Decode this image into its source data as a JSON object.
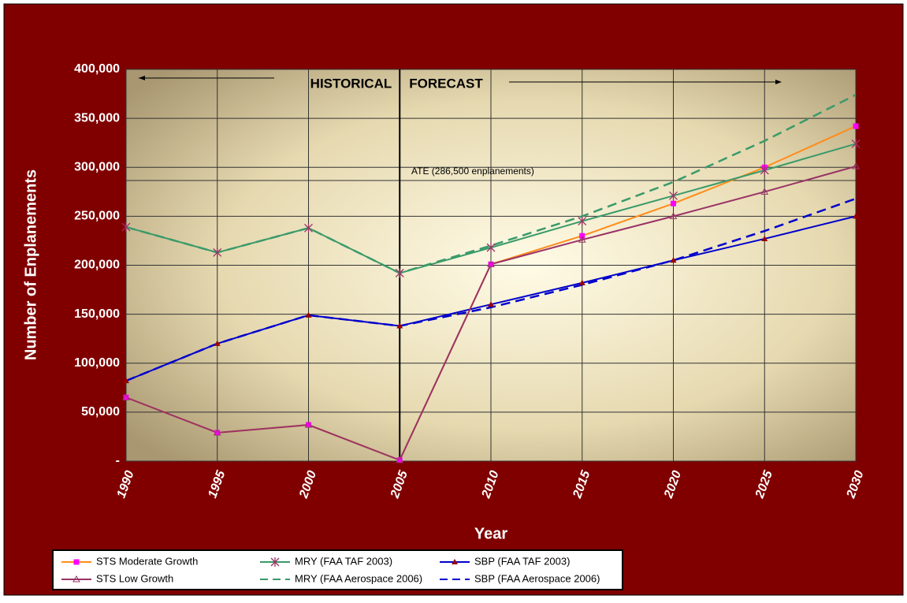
{
  "chart_data": {
    "type": "line",
    "x_label": "Year",
    "y_label": "Number of Enplanements",
    "x": [
      1990,
      1995,
      2000,
      2005,
      2010,
      2015,
      2020,
      2025,
      2030
    ],
    "xlim": [
      1990,
      2030
    ],
    "xticks": [
      1990,
      1995,
      2000,
      2005,
      2010,
      2015,
      2020,
      2025,
      2030
    ],
    "ylim": [
      0,
      400000
    ],
    "yticks": [
      {
        "value": 0,
        "label": "-"
      },
      {
        "value": 50000,
        "label": "50,000"
      },
      {
        "value": 100000,
        "label": "100,000"
      },
      {
        "value": 150000,
        "label": "150,000"
      },
      {
        "value": 200000,
        "label": "200,000"
      },
      {
        "value": 250000,
        "label": "250,000"
      },
      {
        "value": 300000,
        "label": "300,000"
      },
      {
        "value": 350000,
        "label": "350,000"
      },
      {
        "value": 400000,
        "label": "400,000"
      }
    ],
    "grid": true,
    "divider_x": 2005,
    "annotations": [
      "HISTORICAL",
      "FORECAST"
    ],
    "reference_line": {
      "value": 286500,
      "label": "ATE (286,500 enplanements)"
    },
    "series": [
      {
        "name": "STS Moderate Growth",
        "color": "#ff8c1a",
        "marker": "square",
        "marker_color": "#ff00ff",
        "dash": false,
        "values": [
          65000,
          29000,
          37000,
          1000,
          201000,
          230000,
          263000,
          300000,
          342000
        ]
      },
      {
        "name": "MRY (FAA TAF 2003)",
        "color": "#3a9a6a",
        "marker": "star",
        "marker_color": "#993366",
        "dash": false,
        "values": [
          239000,
          213000,
          238000,
          192000,
          218000,
          245000,
          271000,
          297000,
          324000
        ]
      },
      {
        "name": "SBP (FAA TAF 2003)",
        "color": "#0000cc",
        "marker": "triangle",
        "marker_color": "#990000",
        "dash": false,
        "values": [
          82000,
          120000,
          149000,
          138000,
          160000,
          182000,
          205000,
          227000,
          250000
        ]
      },
      {
        "name": "STS Low Growth",
        "color": "#993366",
        "marker": "triangle-open",
        "marker_color": "#993366",
        "dash": false,
        "values": [
          65000,
          29000,
          37000,
          1000,
          201000,
          226000,
          250000,
          275000,
          301000
        ]
      },
      {
        "name": "MRY (FAA Aerospace 2006)",
        "color": "#3a9a6a",
        "marker": "none",
        "marker_color": "#3a9a6a",
        "dash": true,
        "values": [
          239000,
          213000,
          238000,
          192000,
          220000,
          250000,
          285000,
          327000,
          374000
        ]
      },
      {
        "name": "SBP (FAA Aerospace 2006)",
        "color": "#0000cc",
        "marker": "none",
        "marker_color": "#0000cc",
        "dash": true,
        "values": [
          82000,
          120000,
          149000,
          138000,
          157000,
          180000,
          205000,
          235000,
          268000
        ]
      }
    ]
  }
}
